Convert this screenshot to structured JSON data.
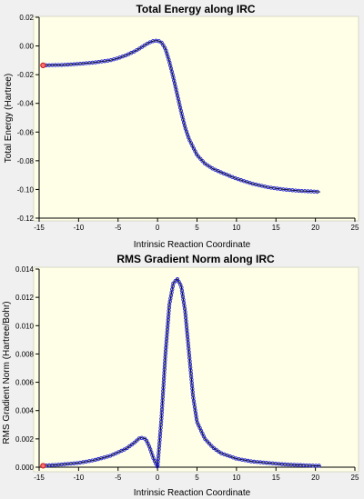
{
  "chart_data": [
    {
      "type": "line",
      "title": "Total Energy along IRC",
      "xlabel": "Intrinsic Reaction Coordinate",
      "ylabel": "Total Energy (Hartree)",
      "xlim": [
        -15,
        25
      ],
      "ylim": [
        -0.12,
        0.02
      ],
      "xticks": [
        -15,
        -10,
        -5,
        0,
        5,
        10,
        15,
        20,
        25
      ],
      "xtick_labels": [
        "-15",
        "-10",
        "-5",
        "0",
        "5",
        "10",
        "15",
        "20",
        "25"
      ],
      "yticks": [
        -0.12,
        -0.1,
        -0.08,
        -0.06,
        -0.04,
        -0.02,
        0.0,
        0.02
      ],
      "ytick_labels": [
        "-0.12",
        "-0.10",
        "-0.08",
        "-0.06",
        "-0.04",
        "-0.02",
        "0.00",
        "0.02"
      ],
      "grid": false,
      "marker": "open-circle",
      "series": [
        {
          "x": [
            -14.5,
            -12,
            -10,
            -8,
            -6,
            -5,
            -4,
            -3,
            -2.5,
            -2,
            -1.5,
            -1,
            -0.5,
            0,
            0.5,
            1,
            1.5,
            2,
            2.5,
            3,
            3.5,
            4,
            5,
            6,
            7,
            8,
            10,
            12,
            14,
            16,
            18,
            20,
            20.6
          ],
          "y": [
            -0.0135,
            -0.0132,
            -0.0125,
            -0.0115,
            -0.01,
            -0.0085,
            -0.0065,
            -0.004,
            -0.0025,
            -0.0008,
            0.001,
            0.0025,
            0.0035,
            0.0038,
            0.0025,
            -0.002,
            -0.011,
            -0.022,
            -0.034,
            -0.046,
            -0.057,
            -0.065,
            -0.076,
            -0.082,
            -0.0855,
            -0.088,
            -0.0925,
            -0.096,
            -0.0985,
            -0.1,
            -0.101,
            -0.1015,
            -0.1017
          ]
        }
      ],
      "current_point": {
        "x": -14.5,
        "y": -0.0135
      }
    },
    {
      "type": "line",
      "title": "RMS Gradient Norm along IRC",
      "xlabel": "Intrinsic Reaction Coordinate",
      "ylabel": "RMS Gradient Norm (Hartree/Bohr)",
      "xlim": [
        -15,
        25
      ],
      "ylim": [
        0,
        0.014
      ],
      "xticks": [
        -15,
        -10,
        -5,
        0,
        5,
        10,
        15,
        20,
        25
      ],
      "xtick_labels": [
        "-15",
        "-10",
        "-5",
        "0",
        "5",
        "10",
        "15",
        "20",
        "25"
      ],
      "yticks": [
        0,
        0.002,
        0.004,
        0.006,
        0.008,
        0.01,
        0.012,
        0.014
      ],
      "ytick_labels": [
        "0.000",
        "0.002",
        "0.004",
        "0.006",
        "0.008",
        "0.010",
        "0.012",
        "0.014"
      ],
      "grid": false,
      "marker": "open-circle",
      "series": [
        {
          "x": [
            -14.5,
            -12,
            -10,
            -8,
            -6,
            -4,
            -3,
            -2.2,
            -1.5,
            -1,
            -0.5,
            0,
            0.5,
            1,
            1.5,
            2,
            2.5,
            3,
            3.5,
            4,
            4.5,
            5,
            6,
            7,
            8,
            10,
            12,
            14,
            16,
            18,
            20,
            20.6
          ],
          "y": [
            0.0001,
            0.0002,
            0.0003,
            0.0005,
            0.0008,
            0.0013,
            0.0017,
            0.0021,
            0.002,
            0.0014,
            0.0006,
            0.0,
            0.0035,
            0.008,
            0.0115,
            0.013,
            0.0133,
            0.0128,
            0.011,
            0.008,
            0.005,
            0.0032,
            0.002,
            0.0014,
            0.001,
            0.0006,
            0.0004,
            0.0003,
            0.0002,
            0.00015,
            0.0001,
            0.0001
          ]
        }
      ],
      "current_point": {
        "x": -14.5,
        "y": 0.0001
      }
    }
  ]
}
